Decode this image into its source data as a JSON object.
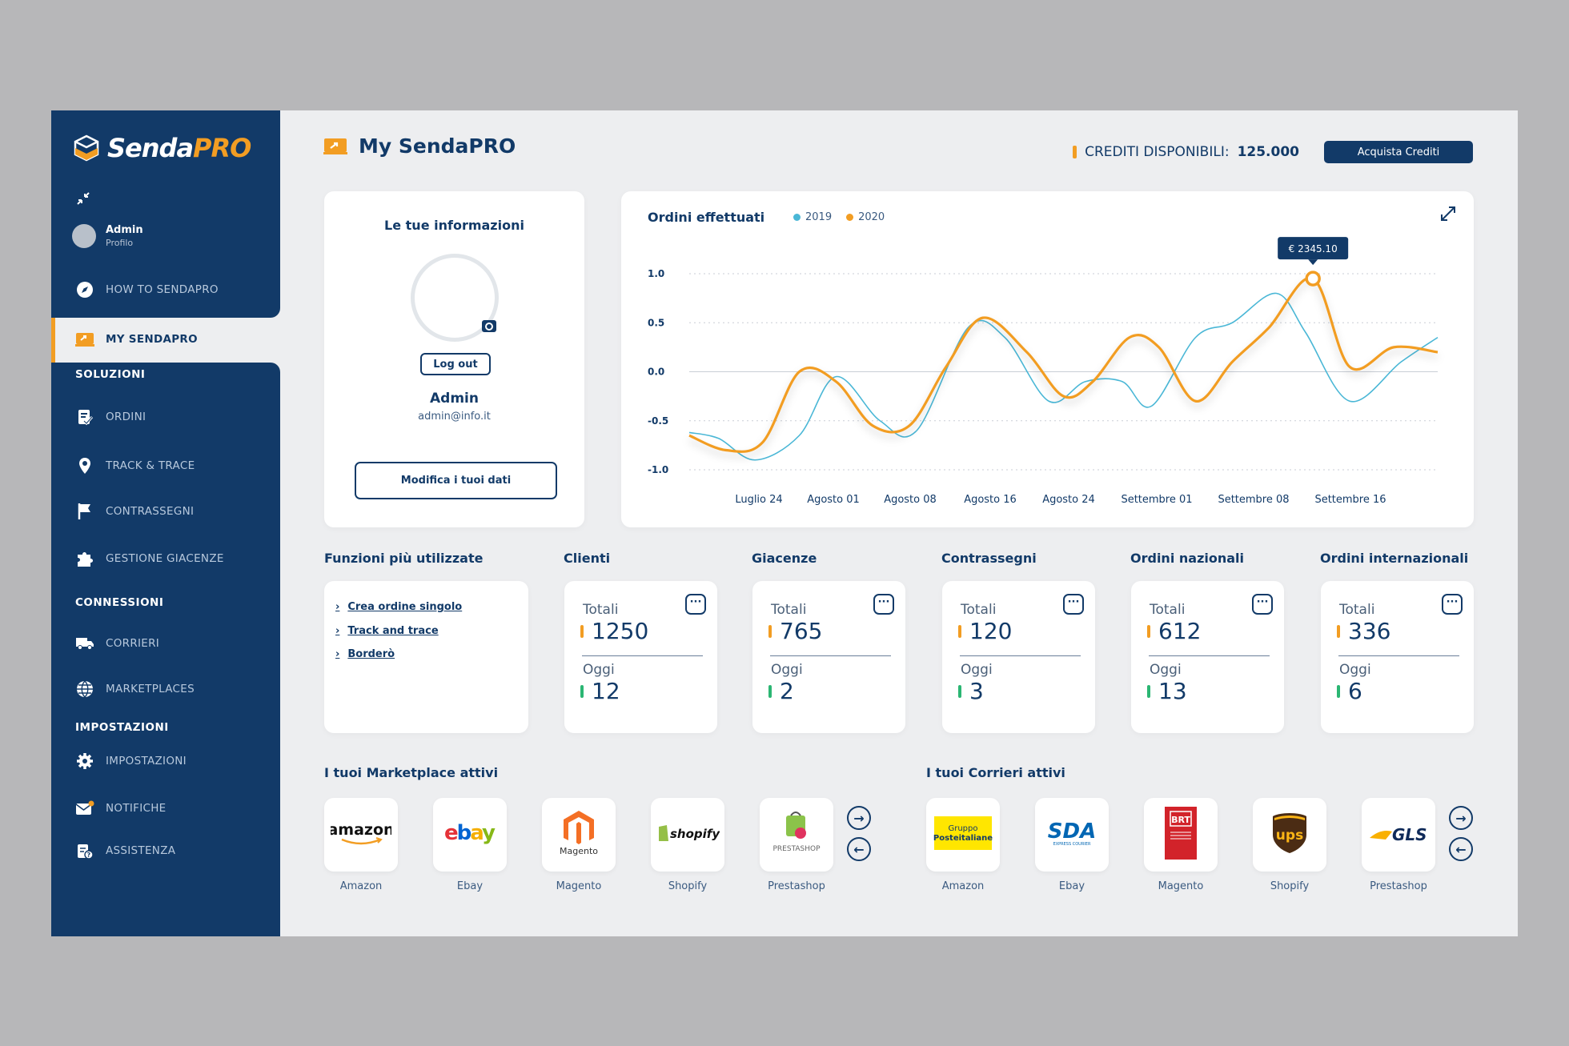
{
  "brand": {
    "name_part1": "Senda",
    "name_part2": "PRO"
  },
  "user": {
    "name": "Admin",
    "role": "Profilo"
  },
  "nav": {
    "how_to": "HOW TO SENDAPRO",
    "my_sendapro": "MY SENDAPRO",
    "section_solutions": "SOLUZIONI",
    "ordini": "ORDINI",
    "track": "TRACK & TRACE",
    "contrassegni": "CONTRASSEGNI",
    "giacenze": "GESTIONE GIACENZE",
    "section_connections": "CONNESSIONI",
    "corrieri": "CORRIERI",
    "marketplaces": "MARKETPLACES",
    "section_settings": "IMPOSTAZIONI",
    "impostazioni": "IMPOSTAZIONI",
    "notifiche": "NOTIFICHE",
    "assistenza": "ASSISTENZA"
  },
  "header": {
    "title": "My SendaPRO",
    "credits_label": "CREDITI DISPONIBILI:",
    "credits_value": "125.000",
    "buy_button": "Acquista Crediti"
  },
  "info": {
    "title": "Le tue informazioni",
    "logout": "Log out",
    "name": "Admin",
    "email": "admin@info.it",
    "edit_button": "Modifica i tuoi dati"
  },
  "chart_data": {
    "type": "line",
    "title": "Ordini effettuati",
    "x": [
      "Luglio 24",
      "Agosto 01",
      "Agosto 08",
      "Agosto 16",
      "Agosto 24",
      "Settembre 01",
      "Settembre 08",
      "Settembre 16"
    ],
    "yticks": [
      "1.0",
      "0.5",
      "0.0",
      "-0.5",
      "-1.0"
    ],
    "ylim": [
      -1.0,
      1.0
    ],
    "series": [
      {
        "name": "2019",
        "color": "#4ab7d6",
        "points": [
          [
            0,
            -0.62
          ],
          [
            0.4,
            -0.68
          ],
          [
            0.9,
            -0.9
          ],
          [
            1.5,
            -0.65
          ],
          [
            2.0,
            -0.05
          ],
          [
            2.6,
            -0.5
          ],
          [
            3.1,
            -0.6
          ],
          [
            3.8,
            0.45
          ],
          [
            4.3,
            0.35
          ],
          [
            4.9,
            -0.3
          ],
          [
            5.4,
            -0.1
          ],
          [
            5.9,
            -0.1
          ],
          [
            6.3,
            -0.35
          ],
          [
            6.9,
            0.35
          ],
          [
            7.4,
            0.5
          ],
          [
            8.0,
            0.8
          ],
          [
            8.4,
            0.4
          ],
          [
            9.0,
            -0.3
          ],
          [
            9.7,
            0.1
          ],
          [
            10.2,
            0.35
          ]
        ]
      },
      {
        "name": "2020",
        "color": "#f29d23",
        "points": [
          [
            0,
            -0.65
          ],
          [
            0.5,
            -0.8
          ],
          [
            1.0,
            -0.72
          ],
          [
            1.5,
            0.0
          ],
          [
            2.0,
            -0.1
          ],
          [
            2.5,
            -0.55
          ],
          [
            3.0,
            -0.55
          ],
          [
            3.5,
            0.05
          ],
          [
            4.0,
            0.55
          ],
          [
            4.6,
            0.2
          ],
          [
            5.1,
            -0.25
          ],
          [
            5.5,
            -0.1
          ],
          [
            6.0,
            0.35
          ],
          [
            6.4,
            0.25
          ],
          [
            6.9,
            -0.3
          ],
          [
            7.4,
            0.1
          ],
          [
            7.9,
            0.45
          ],
          [
            8.5,
            0.95
          ],
          [
            9.0,
            0.05
          ],
          [
            9.6,
            0.25
          ],
          [
            10.2,
            0.2
          ]
        ]
      }
    ],
    "highlight": {
      "series": "2020",
      "label": "€ 2345.10"
    }
  },
  "sections": {
    "funzioni": "Funzioni più utilizzate",
    "marketplace": "I tuoi Marketplace attivi",
    "corrieri": "I tuoi Corrieri attivi"
  },
  "funzioni": [
    "Crea ordine singolo",
    "Track and trace",
    "Borderò"
  ],
  "stats": [
    {
      "title": "Clienti",
      "tot_label": "Totali",
      "tot": "1250",
      "today_label": "Oggi",
      "today": "12"
    },
    {
      "title": "Giacenze",
      "tot_label": "Totali",
      "tot": "765",
      "today_label": "Oggi",
      "today": "2"
    },
    {
      "title": "Contrassegni",
      "tot_label": "Totali",
      "tot": "120",
      "today_label": "Oggi",
      "today": "3"
    },
    {
      "title": "Ordini nazionali",
      "tot_label": "Totali",
      "tot": "612",
      "today_label": "Oggi",
      "today": "13"
    },
    {
      "title": "Ordini internazionali",
      "tot_label": "Totali",
      "tot": "336",
      "today_label": "Oggi",
      "today": "6"
    }
  ],
  "marketplaces": [
    {
      "label": "Amazon",
      "logo": "amazon"
    },
    {
      "label": "Ebay",
      "logo": "ebay"
    },
    {
      "label": "Magento",
      "logo": "Magento"
    },
    {
      "label": "Shopify",
      "logo": "shopify"
    },
    {
      "label": "Prestashop",
      "logo": "PRESTASHOP"
    }
  ],
  "couriers": [
    {
      "label": "Amazon",
      "logo": "Gruppo Posteitaliane"
    },
    {
      "label": "Ebay",
      "logo": "SDA"
    },
    {
      "label": "Magento",
      "logo": "BRT"
    },
    {
      "label": "Shopify",
      "logo": "ups"
    },
    {
      "label": "Prestashop",
      "logo": "GLS"
    }
  ],
  "colors": {
    "primary": "#123a68",
    "accent": "#f29d23",
    "green": "#2bb673",
    "blue": "#4ab7d6"
  }
}
